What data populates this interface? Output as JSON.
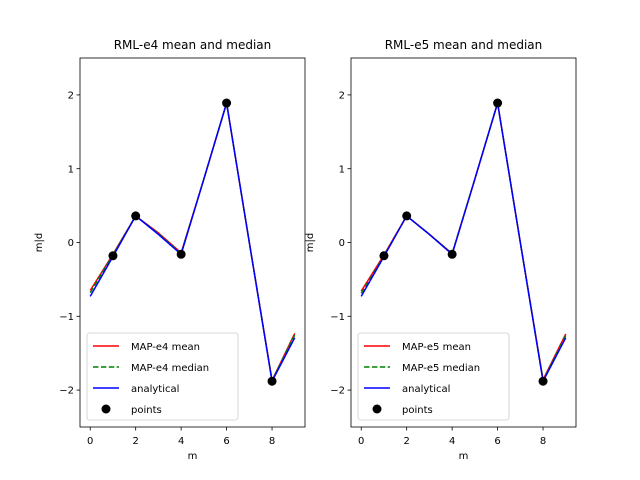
{
  "chart_data": [
    {
      "type": "line",
      "title": "RML-e4 mean and median",
      "xlabel": "m",
      "ylabel": "m|d",
      "xlim": [
        -0.45,
        9.45
      ],
      "ylim": [
        -2.5,
        2.5
      ],
      "xticks": [
        0,
        2,
        4,
        6,
        8
      ],
      "yticks": [
        -2,
        -1,
        0,
        1,
        2
      ],
      "xtick_labels": [
        "0",
        "2",
        "4",
        "6",
        "8"
      ],
      "ytick_labels": [
        "−2",
        "−1",
        "0",
        "1",
        "2"
      ],
      "grid": false,
      "legend_position": "lower-left",
      "series": [
        {
          "name": "MAP-e4 mean",
          "style": "solid",
          "color": "#ff0000",
          "x": [
            0,
            1,
            2,
            3,
            4,
            5,
            6,
            7,
            8,
            9
          ],
          "y": [
            -0.65,
            -0.16,
            0.36,
            0.13,
            -0.14,
            0.86,
            1.89,
            0.0,
            -1.87,
            -1.23
          ]
        },
        {
          "name": "MAP-e4 median",
          "style": "dashed",
          "color": "#008000",
          "x": [
            0,
            1,
            2,
            3,
            4,
            5,
            6,
            7,
            8,
            9
          ],
          "y": [
            -0.68,
            -0.17,
            0.36,
            0.12,
            -0.15,
            0.86,
            1.89,
            0.0,
            -1.87,
            -1.25
          ]
        },
        {
          "name": "analytical",
          "style": "solid",
          "color": "#0000ff",
          "x": [
            0,
            1,
            2,
            3,
            4,
            5,
            6,
            7,
            8,
            9
          ],
          "y": [
            -0.73,
            -0.19,
            0.36,
            0.11,
            -0.16,
            0.86,
            1.89,
            0.0,
            -1.88,
            -1.29
          ]
        },
        {
          "name": "points",
          "style": "marker",
          "color": "#000000",
          "x": [
            1,
            2,
            4,
            6,
            8
          ],
          "y": [
            -0.18,
            0.36,
            -0.16,
            1.89,
            -1.88
          ]
        }
      ]
    },
    {
      "type": "line",
      "title": "RML-e5 mean and median",
      "xlabel": "m",
      "ylabel": "m|d",
      "xlim": [
        -0.45,
        9.45
      ],
      "ylim": [
        -2.5,
        2.5
      ],
      "xticks": [
        0,
        2,
        4,
        6,
        8
      ],
      "yticks": [
        -2,
        -1,
        0,
        1,
        2
      ],
      "xtick_labels": [
        "0",
        "2",
        "4",
        "6",
        "8"
      ],
      "ytick_labels": [
        "−2",
        "−1",
        "0",
        "1",
        "2"
      ],
      "grid": false,
      "legend_position": "lower-left",
      "series": [
        {
          "name": "MAP-e5 mean",
          "style": "solid",
          "color": "#ff0000",
          "x": [
            0,
            1,
            2,
            3,
            4,
            5,
            6,
            7,
            8,
            9
          ],
          "y": [
            -0.66,
            -0.17,
            0.36,
            0.11,
            -0.15,
            0.86,
            1.89,
            0.0,
            -1.86,
            -1.24
          ]
        },
        {
          "name": "MAP-e5 median",
          "style": "dashed",
          "color": "#008000",
          "x": [
            0,
            1,
            2,
            3,
            4,
            5,
            6,
            7,
            8,
            9
          ],
          "y": [
            -0.69,
            -0.18,
            0.36,
            0.11,
            -0.15,
            0.86,
            1.89,
            0.0,
            -1.87,
            -1.26
          ]
        },
        {
          "name": "analytical",
          "style": "solid",
          "color": "#0000ff",
          "x": [
            0,
            1,
            2,
            3,
            4,
            5,
            6,
            7,
            8,
            9
          ],
          "y": [
            -0.73,
            -0.19,
            0.36,
            0.11,
            -0.16,
            0.86,
            1.89,
            0.0,
            -1.88,
            -1.29
          ]
        },
        {
          "name": "points",
          "style": "marker",
          "color": "#000000",
          "x": [
            1,
            2,
            4,
            6,
            8
          ],
          "y": [
            -0.18,
            0.36,
            -0.16,
            1.89,
            -1.88
          ]
        }
      ]
    }
  ]
}
